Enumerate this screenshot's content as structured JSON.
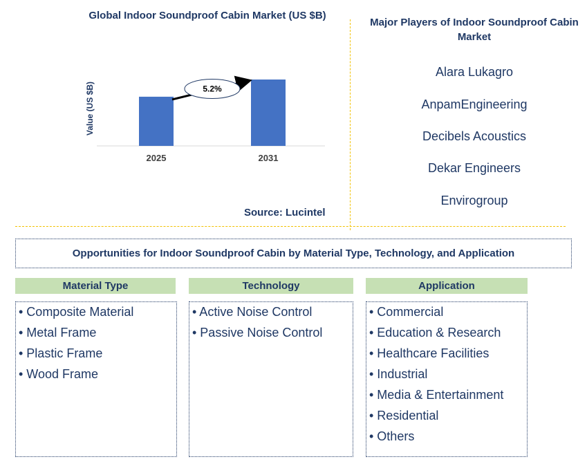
{
  "chart_data": {
    "type": "bar",
    "title": "Global Indoor Soundproof Cabin Market (US $B)",
    "ylabel": "Value (US $B)",
    "categories": [
      "2025",
      "2031"
    ],
    "values": [
      1.0,
      1.35
    ],
    "annotation": "5.2%",
    "bar_color": "#4472c4",
    "source": "Source: Lucintel"
  },
  "players": {
    "title": "Major Players of Indoor Soundproof Cabin Market",
    "items": [
      "Alara Lukagro",
      "AnpamEngineering",
      "Decibels Acoustics",
      "Dekar Engineers",
      "Envirogroup"
    ]
  },
  "opportunities": {
    "title": "Opportunities for Indoor Soundproof Cabin by Material Type, Technology, and Application",
    "columns": [
      {
        "header": "Material Type",
        "items": [
          "• Composite Material",
          "• Metal Frame",
          "• Plastic Frame",
          "• Wood Frame"
        ]
      },
      {
        "header": "Technology",
        "items": [
          "• Active Noise Control",
          "• Passive Noise Control"
        ]
      },
      {
        "header": "Application",
        "items": [
          "• Commercial",
          "• Education & Research",
          "• Healthcare Facilities",
          "• Industrial",
          "• Media & Entertainment",
          "• Residential",
          "• Others"
        ]
      }
    ]
  },
  "colors": {
    "title": "#1f3864",
    "header_fill": "#c6e0b4",
    "divider": "#f2c200",
    "bar": "#4472c4"
  }
}
